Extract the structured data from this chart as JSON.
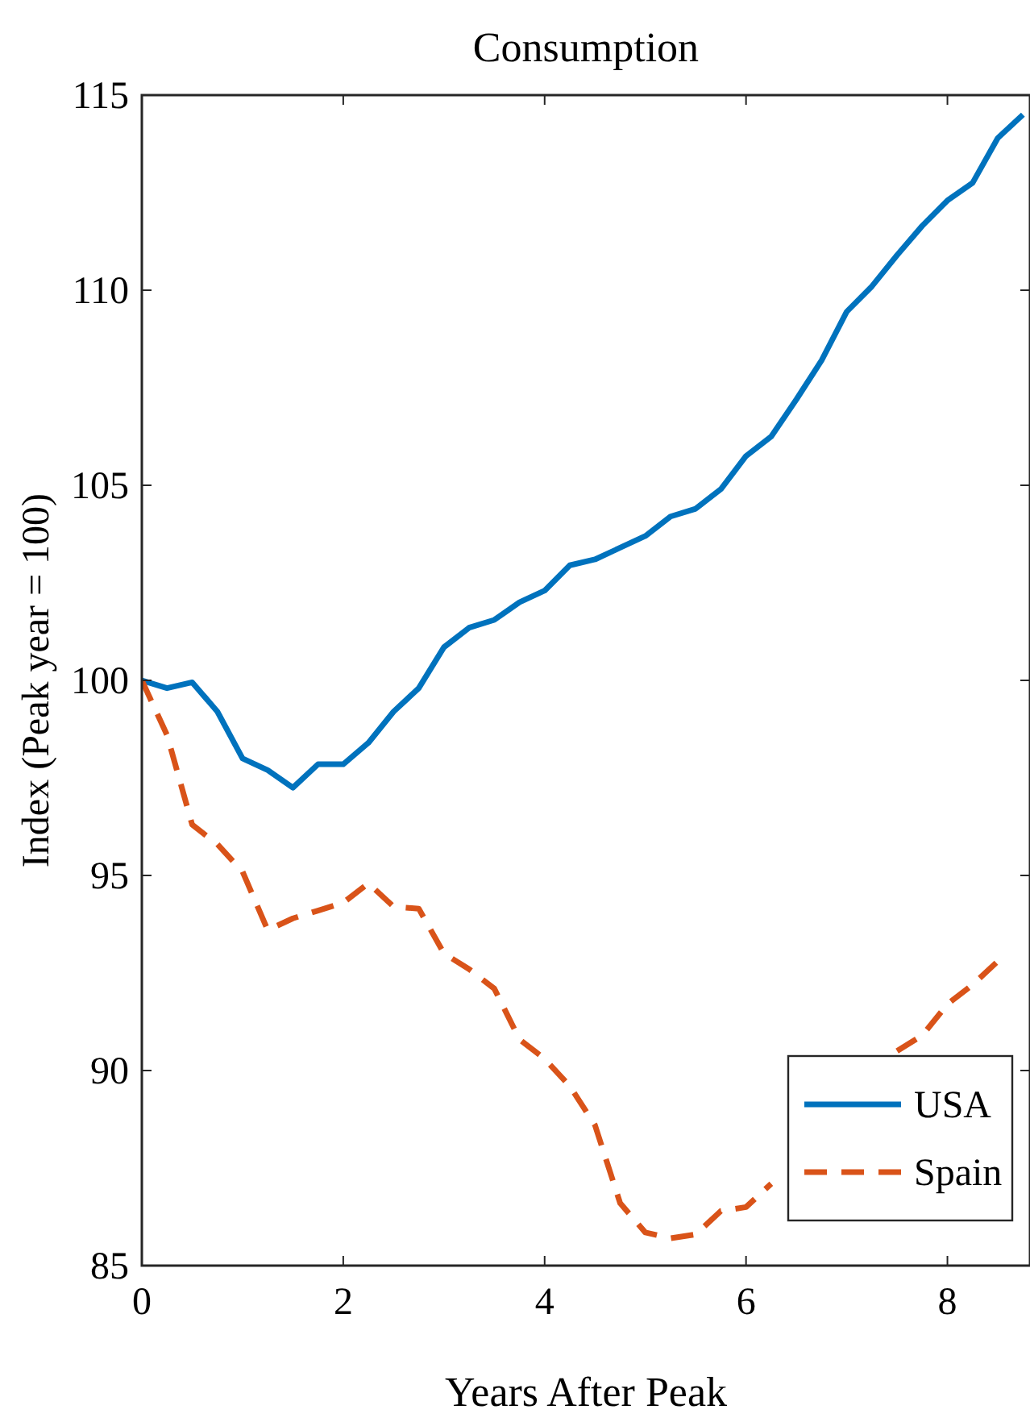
{
  "chart_data": {
    "type": "line",
    "title": "Consumption",
    "xlabel": "Years After Peak",
    "ylabel": "Index (Peak year = 100)",
    "x": [
      0,
      0.25,
      0.5,
      0.75,
      1,
      1.25,
      1.5,
      1.75,
      2,
      2.25,
      2.5,
      2.75,
      3,
      3.25,
      3.5,
      3.75,
      4,
      4.25,
      4.5,
      4.75,
      5,
      5.25,
      5.5,
      5.75,
      6,
      6.25,
      6.5,
      6.75,
      7,
      7.25,
      7.5,
      7.75,
      8,
      8.25,
      8.5,
      8.75
    ],
    "series": [
      {
        "name": "USA",
        "color": "#0072bd",
        "line_style": "solid",
        "values": [
          100,
          99.8,
          99.95,
          99.2,
          98,
          97.7,
          97.25,
          97.85,
          97.85,
          98.4,
          99.2,
          99.8,
          100.85,
          101.35,
          101.55,
          102,
          102.3,
          102.95,
          103.1,
          103.4,
          103.7,
          104.2,
          104.4,
          104.9,
          105.75,
          106.25,
          107.2,
          108.2,
          109.45,
          110.1,
          110.9,
          111.65,
          112.3,
          112.75,
          113.9,
          114.5
        ]
      },
      {
        "name": "Spain",
        "color": "#d95319",
        "line_style": "dashed",
        "values": [
          100,
          98.6,
          96.3,
          95.8,
          95.1,
          93.6,
          93.9,
          94.1,
          94.3,
          94.8,
          94.2,
          94.15,
          93,
          92.6,
          92.1,
          90.8,
          90.3,
          89.6,
          88.6,
          86.6,
          85.85,
          85.7,
          85.8,
          86.4,
          86.5,
          87.1,
          null,
          null,
          null,
          null,
          90.5,
          90.9,
          91.7,
          92.2,
          92.8,
          null
        ]
      }
    ],
    "xlim": [
      0,
      8.82
    ],
    "xticks": [
      0,
      2,
      4,
      6,
      8
    ],
    "ylim": [
      85,
      115
    ],
    "yticks": [
      85,
      90,
      95,
      100,
      105,
      110,
      115
    ],
    "grid": false,
    "legend": "bottom right"
  }
}
